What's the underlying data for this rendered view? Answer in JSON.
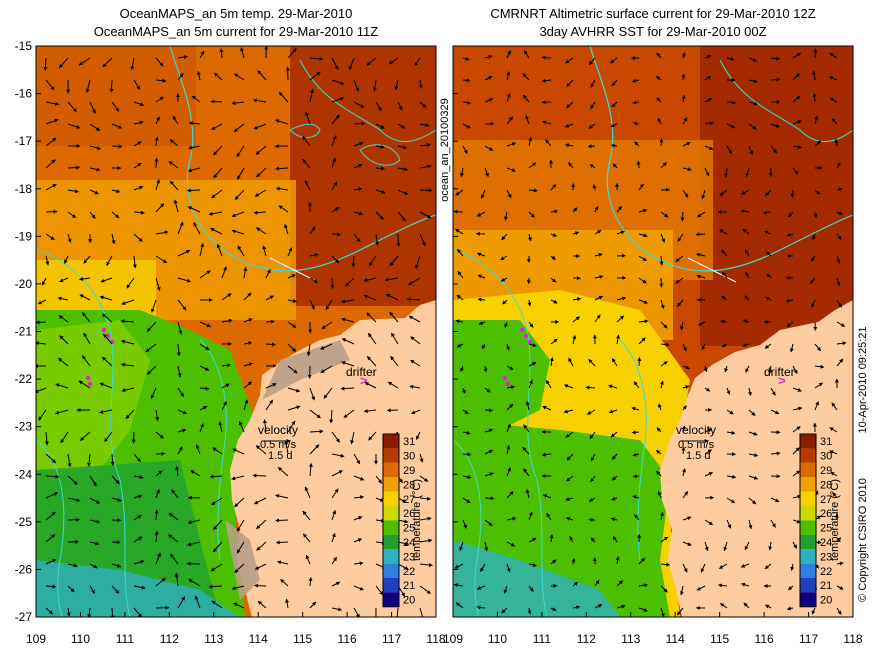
{
  "left_panel": {
    "title_line1": "OceanMAPS_an 5m temp. 29-Mar-2010",
    "title_line2": "OceanMAPS_an 5m current for 29-Mar-2010 11Z",
    "side_label": "ocean_an_20100329"
  },
  "right_panel": {
    "title_line1": "CMRNRT Altimetric surface current for 29-Mar-2010 12Z",
    "title_line2": "3day AVHRR SST for 29-Mar-2010 00Z",
    "side_label": "10-Apr-2010 09:25:21",
    "copyright": "© Copyright CSIRO 2010"
  },
  "annotations": {
    "drifter_label": "drifter",
    "drifter_marker": ">",
    "velocity_label": "velocity",
    "velocity_scale": "0.5 m/s",
    "velocity_time": "1.5 d"
  },
  "axes": {
    "x_ticks": [
      "109",
      "110",
      "111",
      "112",
      "113",
      "114",
      "115",
      "116",
      "117",
      "118"
    ],
    "y_ticks": [
      "-15",
      "-16",
      "-17",
      "-18",
      "-19",
      "-20",
      "-21",
      "-22",
      "-23",
      "-24",
      "-25",
      "-26",
      "-27"
    ],
    "x_range": [
      109,
      118
    ],
    "y_range": [
      -27,
      -15
    ]
  },
  "colorbar": {
    "label": "temperature (°C)",
    "ticks": [
      "31",
      "30",
      "29",
      "28",
      "27",
      "26",
      "25",
      "24",
      "23",
      "22",
      "21",
      "20"
    ],
    "colors": [
      "#8c1c00",
      "#b83a00",
      "#dc6a00",
      "#f0a000",
      "#f8d000",
      "#c8dc00",
      "#4cc000",
      "#20a030",
      "#30b0c0",
      "#3080e0",
      "#2040c0",
      "#100080"
    ]
  },
  "colors": {
    "land": "#fecc9f",
    "coast": "#40d8d8",
    "arrows": "#000000",
    "drifter": "#e020e0"
  }
}
